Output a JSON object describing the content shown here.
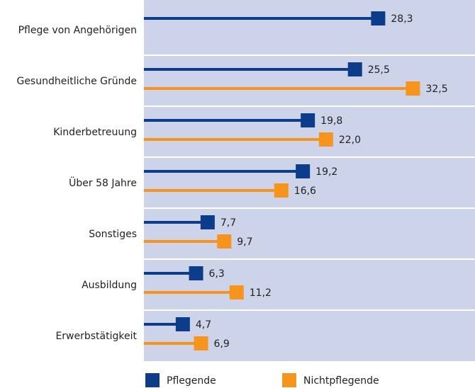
{
  "chart_data": {
    "type": "lollipop",
    "categories": [
      "Pflege von Angehörigen",
      "Gesundheitliche Gründe",
      "Kinderbetreuung",
      "Über 58 Jahre",
      "Sonstiges",
      "Ausbildung",
      "Erwerbstätigkeit"
    ],
    "series": [
      {
        "name": "Pflegende",
        "color": "#0d3d8a",
        "values": [
          28.3,
          25.5,
          19.8,
          19.2,
          7.7,
          6.3,
          4.7
        ],
        "value_labels": [
          "28,3",
          "25,5",
          "19,8",
          "19,2",
          "7,7",
          "6,3",
          "4,7"
        ]
      },
      {
        "name": "Nichtpflegende",
        "color": "#f7941d",
        "values": [
          null,
          32.5,
          22.0,
          16.6,
          9.7,
          11.2,
          6.9
        ],
        "value_labels": [
          null,
          "32,5",
          "22,0",
          "16,6",
          "9,7",
          "11,2",
          "6,9"
        ]
      }
    ],
    "xlim": [
      0,
      40
    ]
  }
}
